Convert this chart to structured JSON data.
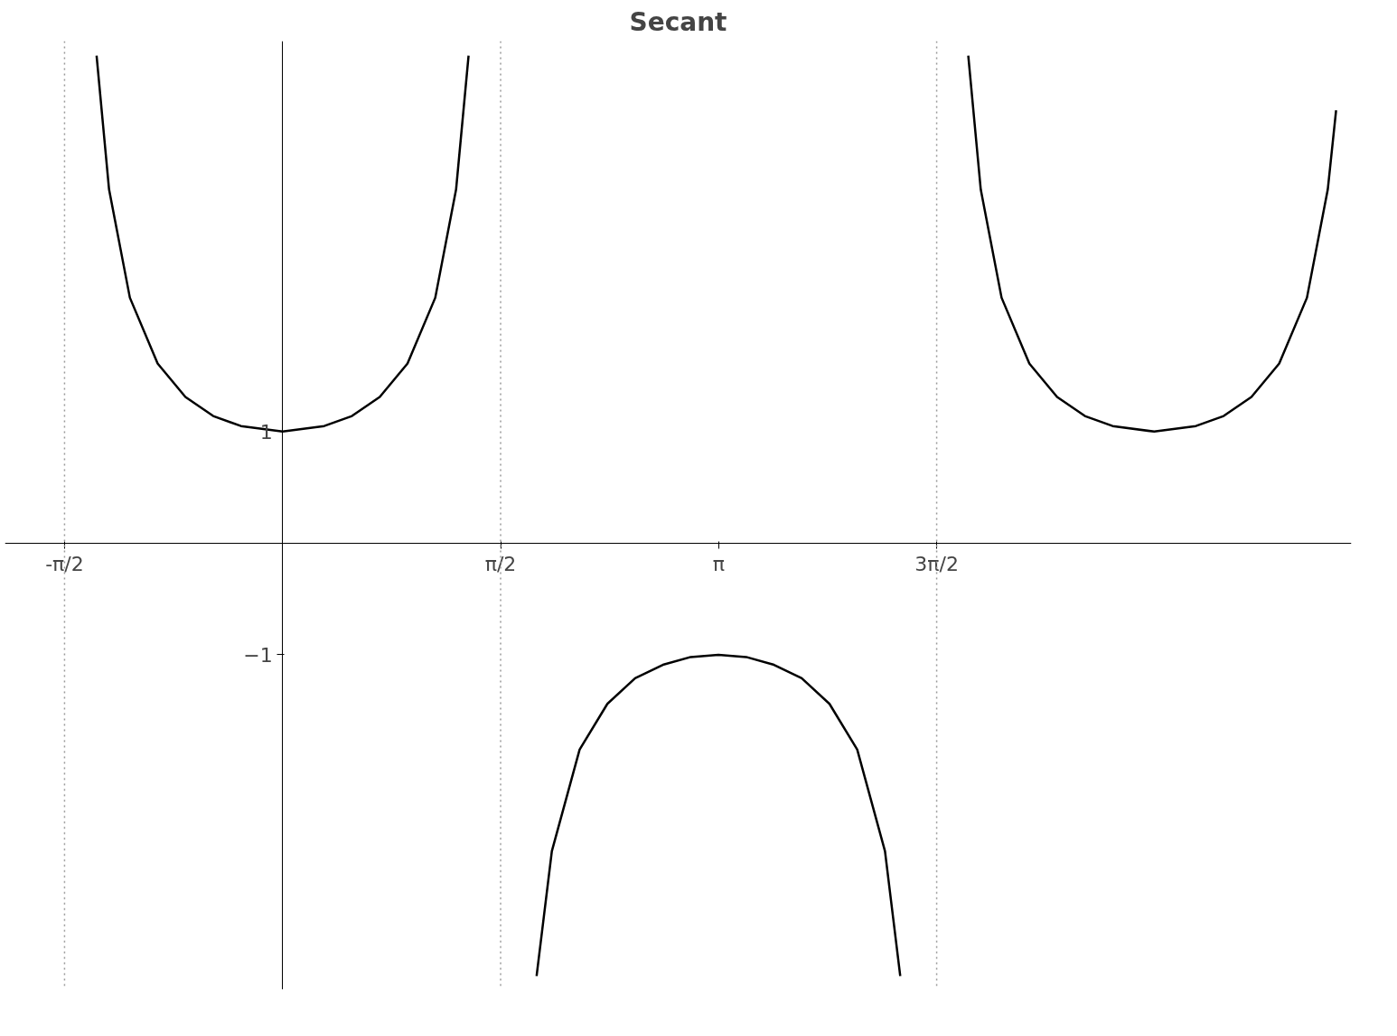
{
  "chart_data": {
    "type": "line",
    "title": "Secant",
    "xlim": [
      -2.0,
      7.7
    ],
    "ylim": [
      -4.0,
      4.5
    ],
    "xticks": [
      {
        "value": -1.5708,
        "label": "-π/2"
      },
      {
        "value": 1.5708,
        "label": "π/2"
      },
      {
        "value": 3.1416,
        "label": "π"
      },
      {
        "value": 4.7124,
        "label": "3π/2"
      }
    ],
    "yticks": [
      1,
      -1
    ],
    "grid": false,
    "marker": "none",
    "line_style": "solid",
    "ref_lines": [
      {
        "axis": "x",
        "value": -1.5708,
        "color": "#999999",
        "line_style": "dotted"
      },
      {
        "axis": "x",
        "value": 1.5708,
        "color": "#999999",
        "line_style": "dotted"
      },
      {
        "axis": "x",
        "value": 4.7124,
        "color": "#999999",
        "line_style": "dotted"
      }
    ],
    "series": [
      {
        "color": "#000000",
        "x": [
          -1.34,
          -1.25,
          -1.1,
          -0.9,
          -0.7,
          -0.5,
          -0.3,
          0,
          0.3,
          0.5,
          0.7,
          0.9,
          1.1,
          1.25,
          1.34
        ],
        "values": [
          4.37,
          3.17,
          2.2,
          1.61,
          1.31,
          1.14,
          1.05,
          1,
          1.05,
          1.14,
          1.31,
          1.61,
          2.2,
          3.17,
          4.37
        ]
      },
      {
        "color": "#000000",
        "x": [
          1.83,
          1.94,
          2.14,
          2.34,
          2.54,
          2.74,
          2.94,
          3.14,
          3.34,
          3.54,
          3.74,
          3.94,
          4.14,
          4.34,
          4.45
        ],
        "values": [
          -3.88,
          -2.76,
          -1.85,
          -1.44,
          -1.21,
          -1.09,
          -1.02,
          -1,
          -1.02,
          -1.09,
          -1.21,
          -1.44,
          -1.85,
          -2.76,
          -3.88
        ]
      },
      {
        "color": "#000000",
        "x": [
          4.94,
          5.03,
          5.18,
          5.38,
          5.58,
          5.78,
          5.98,
          6.28,
          6.58,
          6.78,
          6.98,
          7.18,
          7.38,
          7.53,
          7.59
        ],
        "values": [
          4.37,
          3.17,
          2.2,
          1.61,
          1.31,
          1.14,
          1.05,
          1,
          1.05,
          1.14,
          1.31,
          1.61,
          2.2,
          3.17,
          3.88
        ]
      }
    ]
  }
}
